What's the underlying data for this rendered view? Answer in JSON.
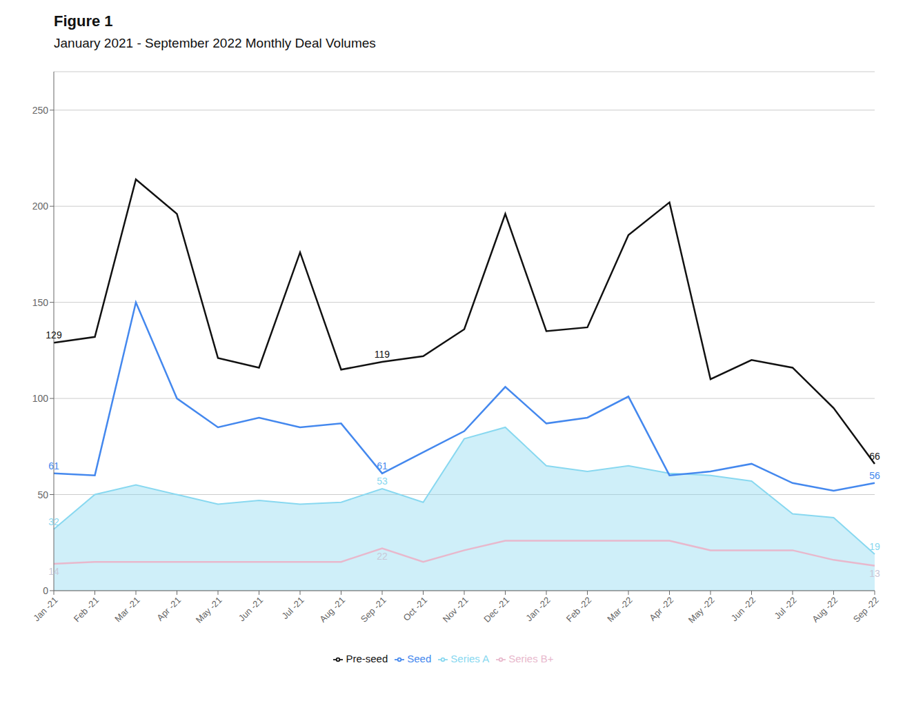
{
  "chart_data": {
    "type": "line",
    "title": "Figure 1",
    "subtitle": "January 2021 - September 2022 Monthly Deal Volumes",
    "categories": [
      "Jan -21",
      "Feb -21",
      "Mar -21",
      "Apr -21",
      "May -21",
      "Jun -21",
      "Jul -21",
      "Aug -21",
      "Sep -21",
      "Oct -21",
      "Nov -21",
      "Dec -21",
      "Jan -22",
      "Feb -22",
      "Mar -22",
      "Apr -22",
      "May -22",
      "Jun -22",
      "Jul -22",
      "Aug -22",
      "Sep -22"
    ],
    "series": [
      {
        "name": "Pre-seed",
        "color": "#111111",
        "type": "line",
        "values": [
          129,
          132,
          214,
          196,
          121,
          116,
          176,
          115,
          119,
          122,
          136,
          196,
          135,
          137,
          185,
          202,
          110,
          120,
          116,
          95,
          66
        ]
      },
      {
        "name": "Seed",
        "color": "#4488ee",
        "type": "line",
        "values": [
          61,
          60,
          150,
          100,
          85,
          90,
          85,
          87,
          61,
          72,
          83,
          106,
          87,
          90,
          101,
          60,
          62,
          66,
          56,
          52,
          56
        ]
      },
      {
        "name": "Series A",
        "color": "#88d8f0",
        "type": "area",
        "values": [
          32,
          50,
          55,
          50,
          45,
          47,
          45,
          46,
          53,
          46,
          79,
          85,
          65,
          62,
          65,
          61,
          60,
          57,
          40,
          38,
          19
        ]
      },
      {
        "name": "Series B+",
        "color": "#e8b8cc",
        "type": "line",
        "values": [
          14,
          15,
          15,
          15,
          15,
          15,
          15,
          15,
          22,
          15,
          21,
          26,
          26,
          26,
          26,
          26,
          21,
          21,
          21,
          16,
          13
        ]
      }
    ],
    "annotations": [
      {
        "text": "129",
        "x": "Jan -21",
        "y": 129,
        "color": "#111111",
        "position": "top"
      },
      {
        "text": "119",
        "x": "Sep -21",
        "y": 119,
        "color": "#111111",
        "position": "top"
      },
      {
        "text": "66",
        "x": "Sep -22",
        "y": 66,
        "color": "#111111",
        "position": "top"
      },
      {
        "text": "61",
        "x": "Jan -21",
        "y": 61,
        "color": "#4488ee",
        "position": "top"
      },
      {
        "text": "61",
        "x": "Sep -21",
        "y": 61,
        "color": "#4488ee",
        "position": "top"
      },
      {
        "text": "56",
        "x": "Sep -22",
        "y": 56,
        "color": "#4488ee",
        "position": "top"
      },
      {
        "text": "32",
        "x": "Jan -21",
        "y": 32,
        "color": "#88d8f0",
        "position": "top"
      },
      {
        "text": "53",
        "x": "Sep -21",
        "y": 53,
        "color": "#88d8f0",
        "position": "top"
      },
      {
        "text": "19",
        "x": "Sep -22",
        "y": 19,
        "color": "#88d8f0",
        "position": "top"
      },
      {
        "text": "14",
        "x": "Jan -21",
        "y": 14,
        "color": "#c8c8d8",
        "position": "bottom"
      },
      {
        "text": "22",
        "x": "Sep -21",
        "y": 22,
        "color": "#c8c8d8",
        "position": "bottom"
      },
      {
        "text": "13",
        "x": "Sep -22",
        "y": 13,
        "color": "#c8c8d8",
        "position": "bottom"
      }
    ],
    "ylim": [
      0,
      270
    ],
    "yticks": [
      0,
      50,
      100,
      150,
      200,
      250
    ],
    "grid": true
  }
}
